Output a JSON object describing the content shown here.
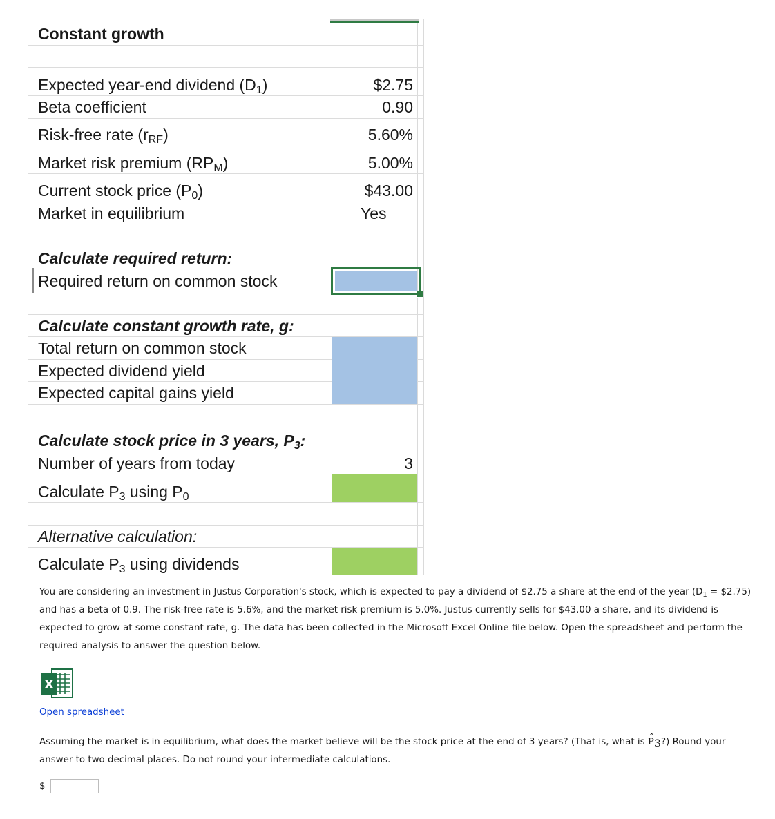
{
  "sheet": {
    "title": "Constant growth",
    "inputs": {
      "d1_label": "Expected year-end dividend (D",
      "d1_sub": "1",
      "d1_label_end": ")",
      "d1_value": "$2.75",
      "beta_label": "Beta coefficient",
      "beta_value": "0.90",
      "rrf_label": "Risk-free rate (r",
      "rrf_sub": "RF",
      "rrf_label_end": ")",
      "rrf_value": "5.60%",
      "rpm_label": "Market risk premium (RP",
      "rpm_sub": "M",
      "rpm_label_end": ")",
      "rpm_value": "5.00%",
      "p0_label": "Current stock price (P",
      "p0_sub": "0",
      "p0_label_end": ")",
      "p0_value": "$43.00",
      "equilibrium_label": "Market in equilibrium",
      "equilibrium_value": "Yes"
    },
    "required_return": {
      "heading": "Calculate required return:",
      "label": "Required return on common stock"
    },
    "growth": {
      "heading": "Calculate constant growth rate, g:",
      "total_return_label": "Total return on common stock",
      "dividend_yield_label": "Expected dividend yield",
      "capital_gains_label": "Expected capital gains yield"
    },
    "price3": {
      "heading": "Calculate stock price in 3 years, P",
      "heading_sub": "3",
      "heading_end": ":",
      "years_label": "Number of years from today",
      "years_value": "3",
      "p3_p0_label_a": "Calculate P",
      "p3_p0_sub_a": "3",
      "p3_p0_label_b": " using P",
      "p3_p0_sub_b": "0"
    },
    "alternative": {
      "heading": "Alternative calculation:",
      "label_a": "Calculate P",
      "label_sub": "3",
      "label_b": " using dividends"
    }
  },
  "problem": {
    "part1": "You are considering an investment in Justus Corporation's stock, which is expected to pay a dividend of $2.75 a share at the end of the year (D",
    "part1_sub": "1",
    "part2": " = $2.75) and has a beta of 0.9. The risk-free rate is 5.6%, and the market risk premium is 5.0%. Justus currently sells for $43.00 a share, and its dividend is expected to grow at some constant rate, g. The data has been collected in the Microsoft Excel Online file below. Open the spreadsheet and perform the required analysis to answer the question below."
  },
  "link": {
    "open_spreadsheet": "Open spreadsheet"
  },
  "question": {
    "part1": "Assuming the market is in equilibrium, what does the market believe will be the stock price at the end of 3 years? (That is, what is ",
    "p_letter": "P",
    "p_sub": "3",
    "part2": "?) Round your answer to two decimal places. Do not round your intermediate calculations.",
    "currency": "$",
    "answer_value": ""
  },
  "colors": {
    "input_blue": "#a4c2e4",
    "output_green": "#9ed062",
    "selection_border": "#2f7b43",
    "link_blue": "#0b3fd6"
  }
}
